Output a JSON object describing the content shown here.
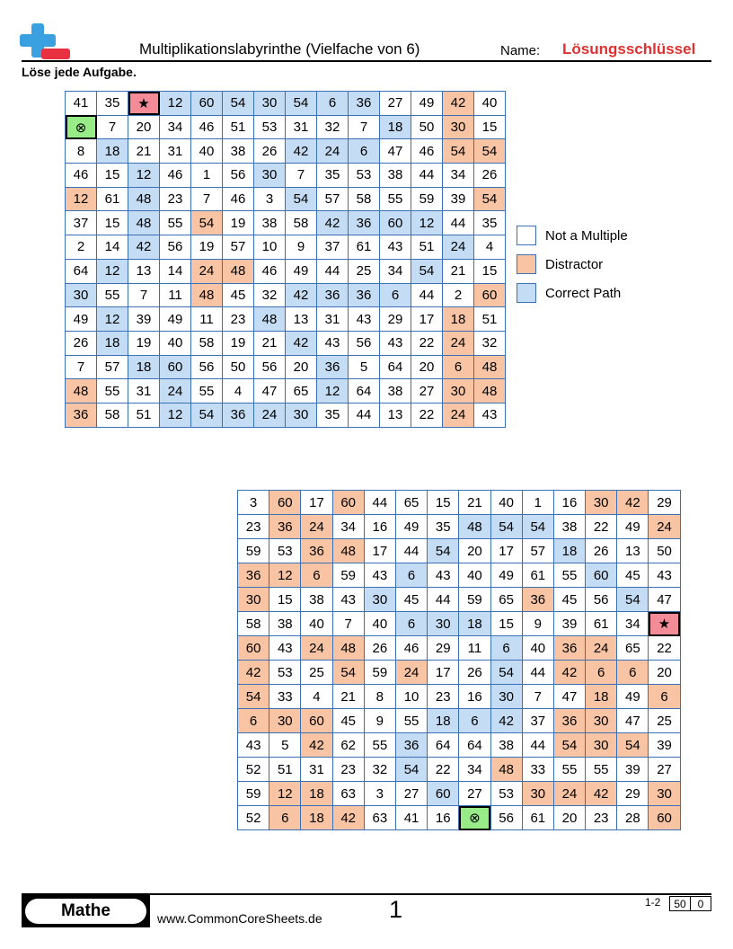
{
  "header": {
    "title": "Multiplikationslabyrinthe (Vielfache von 6)",
    "name_label": "Name:",
    "answer_key": "Lösungsschlüssel",
    "instructions": "Löse jede Aufgabe."
  },
  "colors": {
    "not_multiple": "#ffffff",
    "distractor": "#f8c4a4",
    "correct_path": "#c4dcf4",
    "start": "#f48c98",
    "end": "#98ec88",
    "grid_border": "#3a70b5",
    "answer_key_text": "#e03030"
  },
  "symbols": {
    "start": "★",
    "end": "⊗"
  },
  "legend": [
    {
      "label": "Not a Multiple",
      "type": "n"
    },
    {
      "label": "Distractor",
      "type": "d"
    },
    {
      "label": "Correct Path",
      "type": "c"
    }
  ],
  "mazes": [
    {
      "rows": [
        [
          "41",
          "35",
          "★",
          "12",
          "60",
          "54",
          "30",
          "54",
          "6",
          "36",
          "27",
          "49",
          "42",
          "40"
        ],
        [
          "⊗",
          "7",
          "20",
          "34",
          "46",
          "51",
          "53",
          "31",
          "32",
          "7",
          "18",
          "50",
          "30",
          "15"
        ],
        [
          "8",
          "18",
          "21",
          "31",
          "40",
          "38",
          "26",
          "42",
          "24",
          "6",
          "47",
          "46",
          "54",
          "54"
        ],
        [
          "46",
          "15",
          "12",
          "46",
          "1",
          "56",
          "30",
          "7",
          "35",
          "53",
          "38",
          "44",
          "34",
          "26"
        ],
        [
          "12",
          "61",
          "48",
          "23",
          "7",
          "46",
          "3",
          "54",
          "57",
          "58",
          "55",
          "59",
          "39",
          "54"
        ],
        [
          "37",
          "15",
          "48",
          "55",
          "54",
          "19",
          "38",
          "58",
          "42",
          "36",
          "60",
          "12",
          "44",
          "35"
        ],
        [
          "2",
          "14",
          "42",
          "56",
          "19",
          "57",
          "10",
          "9",
          "37",
          "61",
          "43",
          "51",
          "24",
          "4"
        ],
        [
          "64",
          "12",
          "13",
          "14",
          "24",
          "48",
          "46",
          "49",
          "44",
          "25",
          "34",
          "54",
          "21",
          "15"
        ],
        [
          "30",
          "55",
          "7",
          "11",
          "48",
          "45",
          "32",
          "42",
          "36",
          "36",
          "6",
          "44",
          "2",
          "60"
        ],
        [
          "49",
          "12",
          "39",
          "49",
          "11",
          "23",
          "48",
          "13",
          "31",
          "43",
          "29",
          "17",
          "18",
          "51"
        ],
        [
          "26",
          "18",
          "19",
          "40",
          "58",
          "19",
          "21",
          "42",
          "43",
          "56",
          "43",
          "22",
          "24",
          "32"
        ],
        [
          "7",
          "57",
          "18",
          "60",
          "56",
          "50",
          "56",
          "20",
          "36",
          "5",
          "64",
          "20",
          "6",
          "48"
        ],
        [
          "48",
          "55",
          "31",
          "24",
          "55",
          "4",
          "47",
          "65",
          "12",
          "64",
          "38",
          "27",
          "30",
          "48"
        ],
        [
          "36",
          "58",
          "51",
          "12",
          "54",
          "36",
          "24",
          "30",
          "35",
          "44",
          "13",
          "22",
          "24",
          "43"
        ]
      ],
      "types": [
        [
          "n",
          "n",
          "s",
          "c",
          "c",
          "c",
          "c",
          "c",
          "c",
          "c",
          "n",
          "n",
          "d",
          "n"
        ],
        [
          "e",
          "n",
          "n",
          "n",
          "n",
          "n",
          "n",
          "n",
          "n",
          "n",
          "c",
          "n",
          "d",
          "n"
        ],
        [
          "n",
          "c",
          "n",
          "n",
          "n",
          "n",
          "n",
          "c",
          "c",
          "c",
          "n",
          "n",
          "d",
          "d"
        ],
        [
          "n",
          "n",
          "c",
          "n",
          "n",
          "n",
          "c",
          "n",
          "n",
          "n",
          "n",
          "n",
          "n",
          "n"
        ],
        [
          "d",
          "n",
          "c",
          "n",
          "n",
          "n",
          "n",
          "c",
          "n",
          "n",
          "n",
          "n",
          "n",
          "d"
        ],
        [
          "n",
          "n",
          "c",
          "n",
          "d",
          "n",
          "n",
          "n",
          "c",
          "c",
          "c",
          "c",
          "n",
          "n"
        ],
        [
          "n",
          "n",
          "c",
          "n",
          "n",
          "n",
          "n",
          "n",
          "n",
          "n",
          "n",
          "n",
          "c",
          "n"
        ],
        [
          "n",
          "c",
          "n",
          "n",
          "d",
          "d",
          "n",
          "n",
          "n",
          "n",
          "n",
          "c",
          "n",
          "n"
        ],
        [
          "c",
          "n",
          "n",
          "n",
          "d",
          "n",
          "n",
          "c",
          "c",
          "c",
          "c",
          "n",
          "n",
          "d"
        ],
        [
          "n",
          "c",
          "n",
          "n",
          "n",
          "n",
          "c",
          "n",
          "n",
          "n",
          "n",
          "n",
          "d",
          "n"
        ],
        [
          "n",
          "c",
          "n",
          "n",
          "n",
          "n",
          "n",
          "c",
          "n",
          "n",
          "n",
          "n",
          "d",
          "n"
        ],
        [
          "n",
          "n",
          "c",
          "c",
          "n",
          "n",
          "n",
          "n",
          "c",
          "n",
          "n",
          "n",
          "d",
          "d"
        ],
        [
          "d",
          "n",
          "n",
          "c",
          "n",
          "n",
          "n",
          "n",
          "c",
          "n",
          "n",
          "n",
          "d",
          "d"
        ],
        [
          "d",
          "n",
          "n",
          "c",
          "c",
          "c",
          "c",
          "c",
          "n",
          "n",
          "n",
          "n",
          "d",
          "n"
        ]
      ]
    },
    {
      "rows": [
        [
          "3",
          "60",
          "17",
          "60",
          "44",
          "65",
          "15",
          "21",
          "40",
          "1",
          "16",
          "30",
          "42",
          "29"
        ],
        [
          "23",
          "36",
          "24",
          "34",
          "16",
          "49",
          "35",
          "48",
          "54",
          "54",
          "38",
          "22",
          "49",
          "24"
        ],
        [
          "59",
          "53",
          "36",
          "48",
          "17",
          "44",
          "54",
          "20",
          "17",
          "57",
          "18",
          "26",
          "13",
          "50"
        ],
        [
          "36",
          "12",
          "6",
          "59",
          "43",
          "6",
          "43",
          "40",
          "49",
          "61",
          "55",
          "60",
          "45",
          "43"
        ],
        [
          "30",
          "15",
          "38",
          "43",
          "30",
          "45",
          "44",
          "59",
          "65",
          "36",
          "45",
          "56",
          "54",
          "47"
        ],
        [
          "58",
          "38",
          "40",
          "7",
          "40",
          "6",
          "30",
          "18",
          "15",
          "9",
          "39",
          "61",
          "34",
          "★"
        ],
        [
          "60",
          "43",
          "24",
          "48",
          "26",
          "46",
          "29",
          "11",
          "6",
          "40",
          "36",
          "24",
          "65",
          "22"
        ],
        [
          "42",
          "53",
          "25",
          "54",
          "59",
          "24",
          "17",
          "26",
          "54",
          "44",
          "42",
          "6",
          "6",
          "20"
        ],
        [
          "54",
          "33",
          "4",
          "21",
          "8",
          "10",
          "23",
          "16",
          "30",
          "7",
          "47",
          "18",
          "49",
          "6"
        ],
        [
          "6",
          "30",
          "60",
          "45",
          "9",
          "55",
          "18",
          "6",
          "42",
          "37",
          "36",
          "30",
          "47",
          "25"
        ],
        [
          "43",
          "5",
          "42",
          "62",
          "55",
          "36",
          "64",
          "64",
          "38",
          "44",
          "54",
          "30",
          "54",
          "39"
        ],
        [
          "52",
          "51",
          "31",
          "23",
          "32",
          "54",
          "22",
          "34",
          "48",
          "33",
          "55",
          "55",
          "39",
          "27"
        ],
        [
          "59",
          "12",
          "18",
          "63",
          "3",
          "27",
          "60",
          "27",
          "53",
          "30",
          "24",
          "42",
          "29",
          "30"
        ],
        [
          "52",
          "6",
          "18",
          "42",
          "63",
          "41",
          "16",
          "⊗",
          "56",
          "61",
          "20",
          "23",
          "28",
          "60"
        ]
      ],
      "types": [
        [
          "n",
          "d",
          "n",
          "d",
          "n",
          "n",
          "n",
          "n",
          "n",
          "n",
          "n",
          "d",
          "d",
          "n"
        ],
        [
          "n",
          "d",
          "d",
          "n",
          "n",
          "n",
          "n",
          "c",
          "c",
          "c",
          "n",
          "n",
          "n",
          "d"
        ],
        [
          "n",
          "n",
          "d",
          "d",
          "n",
          "n",
          "c",
          "n",
          "n",
          "n",
          "c",
          "n",
          "n",
          "n"
        ],
        [
          "d",
          "d",
          "d",
          "n",
          "n",
          "c",
          "n",
          "n",
          "n",
          "n",
          "n",
          "c",
          "n",
          "n"
        ],
        [
          "d",
          "n",
          "n",
          "n",
          "c",
          "n",
          "n",
          "n",
          "n",
          "d",
          "n",
          "n",
          "c",
          "n"
        ],
        [
          "n",
          "n",
          "n",
          "n",
          "n",
          "c",
          "c",
          "c",
          "n",
          "n",
          "n",
          "n",
          "n",
          "s"
        ],
        [
          "d",
          "n",
          "d",
          "d",
          "n",
          "n",
          "n",
          "n",
          "c",
          "n",
          "d",
          "d",
          "n",
          "n"
        ],
        [
          "d",
          "n",
          "n",
          "d",
          "n",
          "d",
          "n",
          "n",
          "c",
          "n",
          "d",
          "d",
          "d",
          "n"
        ],
        [
          "d",
          "n",
          "n",
          "n",
          "n",
          "n",
          "n",
          "n",
          "c",
          "n",
          "n",
          "d",
          "n",
          "d"
        ],
        [
          "d",
          "d",
          "d",
          "n",
          "n",
          "n",
          "c",
          "c",
          "c",
          "n",
          "d",
          "d",
          "n",
          "n"
        ],
        [
          "n",
          "n",
          "d",
          "n",
          "n",
          "c",
          "n",
          "n",
          "n",
          "n",
          "d",
          "d",
          "d",
          "n"
        ],
        [
          "n",
          "n",
          "n",
          "n",
          "n",
          "c",
          "n",
          "n",
          "d",
          "n",
          "n",
          "n",
          "n",
          "n"
        ],
        [
          "n",
          "d",
          "d",
          "n",
          "n",
          "n",
          "c",
          "n",
          "n",
          "d",
          "d",
          "d",
          "n",
          "d"
        ],
        [
          "n",
          "d",
          "d",
          "d",
          "n",
          "n",
          "n",
          "e",
          "n",
          "n",
          "n",
          "n",
          "n",
          "d"
        ]
      ]
    }
  ],
  "footer": {
    "brand": "Mathe",
    "website": "www.CommonCoreSheets.de",
    "page_number": "1",
    "range": "1-2",
    "score_total": "50",
    "score_zero": "0"
  }
}
